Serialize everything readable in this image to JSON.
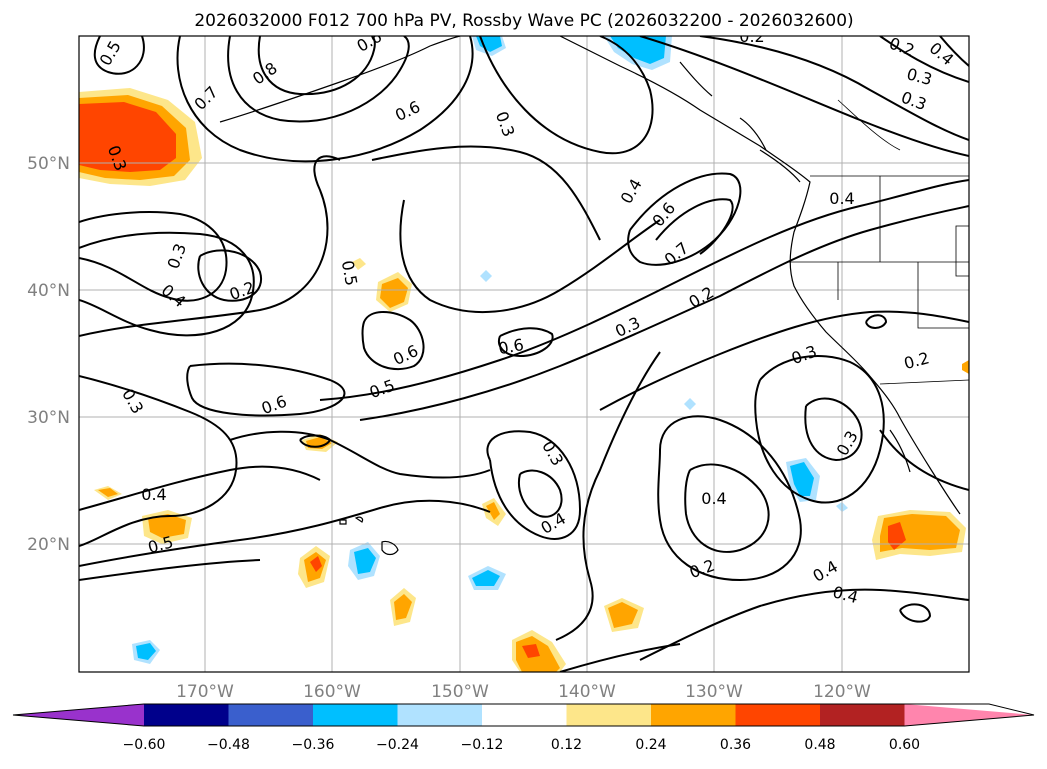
{
  "title": "2026032000 F012 700 hPa PV, Rossby Wave PC (2026032200 - 2026032600)",
  "latitude_labels": [
    "50°N",
    "40°N",
    "30°N",
    "20°N"
  ],
  "longitude_labels": [
    "170°W",
    "160°W",
    "150°W",
    "140°W",
    "130°W",
    "120°W"
  ],
  "colorbar": {
    "ticks": [
      "−0.60",
      "−0.48",
      "−0.36",
      "−0.24",
      "−0.12",
      "0.12",
      "0.24",
      "0.36",
      "0.48",
      "0.60"
    ],
    "colors": [
      "#9932cc",
      "#00008b",
      "#3a5fcd",
      "#00bfff",
      "#b0e2ff",
      "#ffffff",
      "#fde68a",
      "#ffa500",
      "#ff4500",
      "#b22222",
      "#ff85ad"
    ]
  },
  "contour_labels": [
    "0.5",
    "0.6",
    "0.8",
    "0.7",
    "0.6",
    "0.3",
    "0.2",
    "0.3",
    "0.4",
    "0.3",
    "0.2",
    "0.4",
    "0.3",
    "0.5",
    "0.4",
    "0.6",
    "0.7",
    "0.2",
    "0.3",
    "0.6",
    "0.6",
    "0.5",
    "0.6",
    "0.3",
    "0.3",
    "0.2",
    "0.4",
    "0.3",
    "0.4",
    "0.4",
    "0.5",
    "0.3",
    "0.4",
    "0.4",
    "0.2",
    "0.4",
    "0.3",
    "0.2"
  ]
}
